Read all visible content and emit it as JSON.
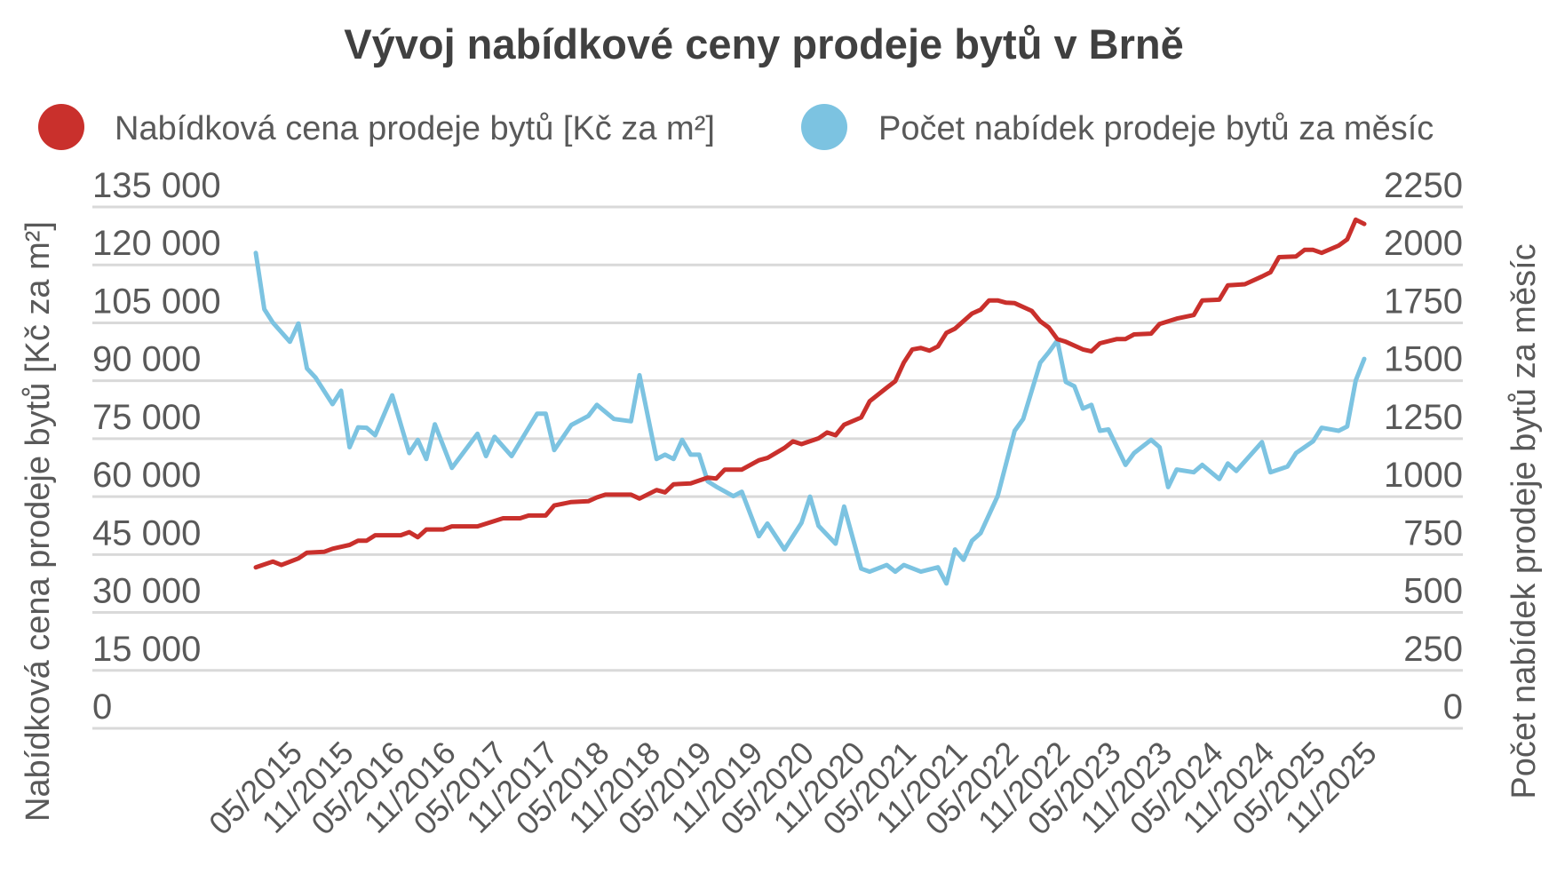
{
  "chart_data": {
    "type": "line",
    "title": "Vývoj nabídkové ceny prodeje bytů v Brně",
    "x_start": "01/2015",
    "x_unit": "month",
    "x_tick_labels": [
      "05/2015",
      "11/2015",
      "05/2016",
      "11/2016",
      "05/2017",
      "11/2017",
      "05/2018",
      "11/2018",
      "05/2019",
      "11/2019",
      "05/2020",
      "11/2020",
      "05/2021",
      "11/2021",
      "05/2022",
      "11/2022",
      "05/2023",
      "11/2023",
      "05/2024",
      "11/2024",
      "05/2025",
      "11/2025"
    ],
    "x_tick_months": [
      4,
      10,
      16,
      22,
      28,
      34,
      40,
      46,
      52,
      58,
      64,
      70,
      76,
      82,
      88,
      94,
      100,
      106,
      112,
      118,
      124,
      130
    ],
    "ylabel_left": "Nabídková cena prodeje bytů [Kč za m²]",
    "ylabel_right": "Počet nabídek prodeje bytů za měsíc",
    "ylim_left": [
      0,
      135000
    ],
    "ylim_right": [
      0,
      2250
    ],
    "yticks_left": [
      "0",
      "15 000",
      "30 000",
      "45 000",
      "60 000",
      "75 000",
      "90 000",
      "105 000",
      "120 000",
      "135 000"
    ],
    "yticks_right": [
      "0",
      "250",
      "500",
      "750",
      "1000",
      "1250",
      "1500",
      "1750",
      "2000",
      "2250"
    ],
    "grid": true,
    "legend_placement": "top",
    "series": [
      {
        "name": "Nabídková cena prodeje bytů [Kč za m²]",
        "axis": "left",
        "color": "#c9302c",
        "points": [
          [
            0,
            41700
          ],
          [
            2,
            43200
          ],
          [
            3,
            42300
          ],
          [
            5,
            44000
          ],
          [
            6,
            45500
          ],
          [
            8,
            45700
          ],
          [
            9,
            46500
          ],
          [
            11,
            47500
          ],
          [
            12,
            48600
          ],
          [
            13,
            48600
          ],
          [
            14,
            50000
          ],
          [
            17,
            50000
          ],
          [
            18,
            50800
          ],
          [
            19,
            49500
          ],
          [
            20,
            51500
          ],
          [
            22,
            51500
          ],
          [
            23,
            52300
          ],
          [
            26,
            52300
          ],
          [
            29,
            54400
          ],
          [
            31,
            54400
          ],
          [
            32,
            55100
          ],
          [
            34,
            55100
          ],
          [
            35,
            57700
          ],
          [
            37,
            58600
          ],
          [
            39,
            58800
          ],
          [
            40,
            59800
          ],
          [
            41,
            60500
          ],
          [
            44,
            60500
          ],
          [
            45,
            59500
          ],
          [
            47,
            61700
          ],
          [
            48,
            61100
          ],
          [
            49,
            63200
          ],
          [
            51,
            63400
          ],
          [
            53,
            64900
          ],
          [
            54,
            64700
          ],
          [
            55,
            67000
          ],
          [
            57,
            67000
          ],
          [
            59,
            69400
          ],
          [
            60,
            70000
          ],
          [
            62,
            72600
          ],
          [
            63,
            74300
          ],
          [
            64,
            73600
          ],
          [
            66,
            75100
          ],
          [
            67,
            76600
          ],
          [
            68,
            75900
          ],
          [
            69,
            78600
          ],
          [
            71,
            80500
          ],
          [
            72,
            84700
          ],
          [
            74,
            88200
          ],
          [
            75,
            89900
          ],
          [
            76,
            94700
          ],
          [
            77,
            98100
          ],
          [
            78,
            98500
          ],
          [
            79,
            97800
          ],
          [
            80,
            98900
          ],
          [
            81,
            102400
          ],
          [
            82,
            103500
          ],
          [
            84,
            107400
          ],
          [
            85,
            108400
          ],
          [
            86,
            110800
          ],
          [
            87,
            110800
          ],
          [
            88,
            110200
          ],
          [
            89,
            110100
          ],
          [
            91,
            108100
          ],
          [
            92,
            105400
          ],
          [
            93,
            103800
          ],
          [
            94,
            100800
          ],
          [
            95,
            100100
          ],
          [
            97,
            98100
          ],
          [
            98,
            97600
          ],
          [
            99,
            99700
          ],
          [
            101,
            100800
          ],
          [
            102,
            100800
          ],
          [
            103,
            102000
          ],
          [
            105,
            102200
          ],
          [
            106,
            104700
          ],
          [
            108,
            106100
          ],
          [
            110,
            107000
          ],
          [
            111,
            110800
          ],
          [
            113,
            111000
          ],
          [
            114,
            114700
          ],
          [
            116,
            115000
          ],
          [
            118,
            117000
          ],
          [
            119,
            118100
          ],
          [
            120,
            122000
          ],
          [
            122,
            122200
          ],
          [
            123,
            123900
          ],
          [
            124,
            123900
          ],
          [
            125,
            123100
          ],
          [
            127,
            125000
          ],
          [
            128,
            126600
          ],
          [
            129,
            131700
          ],
          [
            130,
            130600
          ]
        ]
      },
      {
        "name": "Počet nabídek prodeje bytů za měsíc",
        "axis": "right",
        "color": "#7cc3e1",
        "points": [
          [
            0,
            2052
          ],
          [
            1,
            1809
          ],
          [
            2,
            1751
          ],
          [
            4,
            1668
          ],
          [
            5,
            1747
          ],
          [
            6,
            1553
          ],
          [
            7,
            1514
          ],
          [
            9,
            1399
          ],
          [
            10,
            1457
          ],
          [
            11,
            1213
          ],
          [
            12,
            1299
          ],
          [
            13,
            1297
          ],
          [
            14,
            1265
          ],
          [
            16,
            1437
          ],
          [
            18,
            1188
          ],
          [
            19,
            1245
          ],
          [
            20,
            1162
          ],
          [
            21,
            1312
          ],
          [
            23,
            1124
          ],
          [
            26,
            1271
          ],
          [
            27,
            1175
          ],
          [
            28,
            1258
          ],
          [
            30,
            1175
          ],
          [
            33,
            1358
          ],
          [
            34,
            1358
          ],
          [
            35,
            1201
          ],
          [
            37,
            1309
          ],
          [
            39,
            1348
          ],
          [
            40,
            1396
          ],
          [
            42,
            1335
          ],
          [
            44,
            1325
          ],
          [
            45,
            1524
          ],
          [
            47,
            1162
          ],
          [
            48,
            1181
          ],
          [
            49,
            1162
          ],
          [
            50,
            1245
          ],
          [
            51,
            1181
          ],
          [
            52,
            1181
          ],
          [
            53,
            1066
          ],
          [
            54,
            1043
          ],
          [
            56,
            1002
          ],
          [
            57,
            1021
          ],
          [
            59,
            829
          ],
          [
            60,
            884
          ],
          [
            62,
            772
          ],
          [
            64,
            887
          ],
          [
            65,
            1000
          ],
          [
            66,
            874
          ],
          [
            68,
            797
          ],
          [
            69,
            957
          ],
          [
            71,
            689
          ],
          [
            72,
            676
          ],
          [
            74,
            705
          ],
          [
            75,
            676
          ],
          [
            76,
            705
          ],
          [
            78,
            676
          ],
          [
            80,
            695
          ],
          [
            81,
            625
          ],
          [
            82,
            772
          ],
          [
            83,
            727
          ],
          [
            84,
            810
          ],
          [
            85,
            842
          ],
          [
            87,
            1002
          ],
          [
            89,
            1284
          ],
          [
            90,
            1335
          ],
          [
            92,
            1578
          ],
          [
            93,
            1623
          ],
          [
            94,
            1674
          ],
          [
            95,
            1495
          ],
          [
            96,
            1476
          ],
          [
            97,
            1380
          ],
          [
            98,
            1396
          ],
          [
            99,
            1284
          ],
          [
            100,
            1290
          ],
          [
            102,
            1137
          ],
          [
            103,
            1188
          ],
          [
            105,
            1245
          ],
          [
            106,
            1213
          ],
          [
            107,
            1041
          ],
          [
            108,
            1117
          ],
          [
            110,
            1105
          ],
          [
            111,
            1137
          ],
          [
            113,
            1076
          ],
          [
            114,
            1143
          ],
          [
            115,
            1111
          ],
          [
            118,
            1235
          ],
          [
            119,
            1105
          ],
          [
            121,
            1130
          ],
          [
            122,
            1188
          ],
          [
            124,
            1239
          ],
          [
            125,
            1297
          ],
          [
            127,
            1284
          ],
          [
            128,
            1303
          ],
          [
            129,
            1501
          ],
          [
            130,
            1594
          ]
        ]
      }
    ]
  }
}
